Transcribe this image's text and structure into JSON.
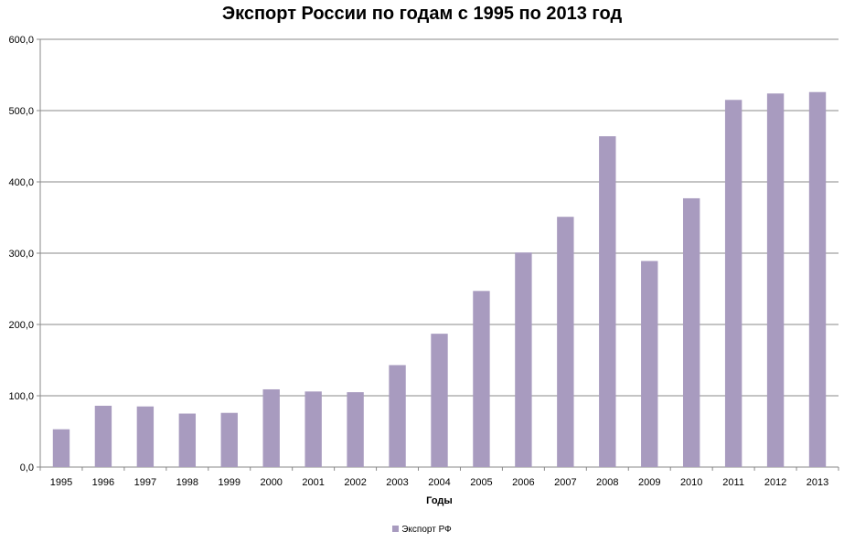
{
  "chart_data": {
    "type": "bar",
    "title": "Экспорт России по годам с 1995 по 2013 год",
    "xlabel": "Годы",
    "ylabel": "",
    "ylim": [
      0,
      600
    ],
    "yticks": [
      "0,0",
      "100,0",
      "200,0",
      "300,0",
      "400,0",
      "500,0",
      "600,0"
    ],
    "grid": true,
    "legend_position": "bottom",
    "categories": [
      "1995",
      "1996",
      "1997",
      "1998",
      "1999",
      "2000",
      "2001",
      "2002",
      "2003",
      "2004",
      "2005",
      "2006",
      "2007",
      "2008",
      "2009",
      "2010",
      "2011",
      "2012",
      "2013"
    ],
    "series": [
      {
        "name": "Экспорт РФ",
        "color": "#a89bbf",
        "values": [
          53,
          86,
          85,
          75,
          76,
          109,
          106,
          105,
          143,
          187,
          247,
          301,
          351,
          464,
          289,
          377,
          515,
          524,
          526
        ]
      }
    ]
  }
}
